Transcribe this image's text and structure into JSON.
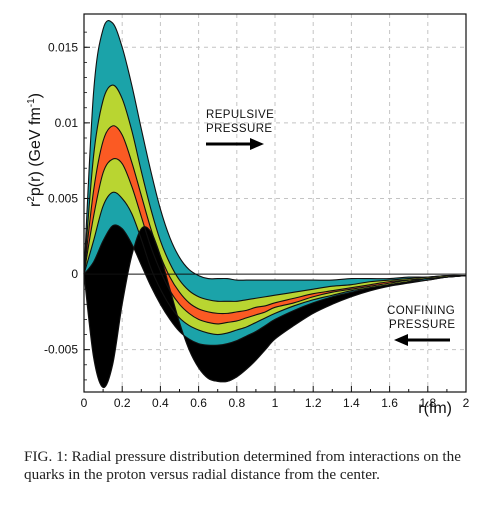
{
  "chart_data": {
    "type": "area",
    "title": "",
    "xlabel": "r(fm)",
    "ylabel_main": "r",
    "ylabel_sup": "2",
    "ylabel_rest": "p(r) (GeV fm",
    "ylabel_exp": "-1",
    "ylabel_close": ")",
    "xlim": [
      0,
      2
    ],
    "ylim": [
      -0.0078,
      0.0172
    ],
    "grid": true,
    "x_ticks": [
      0,
      0.2,
      0.4,
      0.6,
      0.8,
      1,
      1.2,
      1.4,
      1.6,
      1.8,
      2
    ],
    "x_tick_labels": [
      "0",
      "0.2",
      "0.4",
      "0.6",
      "0.8",
      "1",
      "1.2",
      "1.4",
      "1.6",
      "1.8",
      "2"
    ],
    "y_ticks": [
      -0.005,
      0,
      0.005,
      0.01,
      0.015
    ],
    "y_tick_labels": [
      "-0.005",
      "0",
      "0.005",
      "0.01",
      "0.015"
    ],
    "x": [
      0,
      0.05,
      0.1,
      0.15,
      0.2,
      0.25,
      0.3,
      0.35,
      0.4,
      0.45,
      0.5,
      0.55,
      0.6,
      0.65,
      0.7,
      0.75,
      0.8,
      0.85,
      0.9,
      0.95,
      1.0,
      1.1,
      1.2,
      1.3,
      1.4,
      1.5,
      1.6,
      1.7,
      1.8,
      1.9,
      2.0
    ],
    "series": [
      {
        "values": [
          0,
          0.012,
          0.0162,
          0.0166,
          0.015,
          0.0125,
          0.0096,
          0.0068,
          0.0043,
          0.0024,
          0.0011,
          0.0003,
          -0.0001,
          -0.0003,
          -0.0003,
          -0.0003,
          -0.0004,
          -0.0004,
          -0.0004,
          -0.0004,
          -0.0004,
          -0.0004,
          -0.0004,
          -0.0004,
          -0.0003,
          -0.0003,
          -0.0003,
          -0.0002,
          -0.0002,
          -0.0001,
          -0.0001
        ]
      },
      {
        "values": [
          0,
          0.0078,
          0.0115,
          0.0125,
          0.0116,
          0.0095,
          0.0068,
          0.0043,
          0.0022,
          0.0007,
          -0.0004,
          -0.0011,
          -0.0015,
          -0.0017,
          -0.0018,
          -0.0018,
          -0.0018,
          -0.0017,
          -0.0016,
          -0.0015,
          -0.0014,
          -0.0012,
          -0.001,
          -0.0008,
          -0.0007,
          -0.0005,
          -0.0004,
          -0.0003,
          -0.0002,
          -0.0001,
          -0.0001
        ]
      },
      {
        "values": [
          0,
          0.0055,
          0.0088,
          0.0098,
          0.0092,
          0.0074,
          0.0052,
          0.003,
          0.0012,
          -0.0002,
          -0.0012,
          -0.0019,
          -0.0023,
          -0.0025,
          -0.0026,
          -0.0026,
          -0.0025,
          -0.0024,
          -0.0022,
          -0.0021,
          -0.0019,
          -0.0016,
          -0.0013,
          -0.0011,
          -0.0009,
          -0.0007,
          -0.0005,
          -0.0004,
          -0.0003,
          -0.0002,
          -0.0001
        ]
      },
      {
        "values": [
          0,
          0.0038,
          0.0067,
          0.0076,
          0.0073,
          0.0058,
          0.0038,
          0.0018,
          0.0002,
          -0.0011,
          -0.002,
          -0.0026,
          -0.003,
          -0.0032,
          -0.0033,
          -0.0032,
          -0.0031,
          -0.0029,
          -0.0027,
          -0.0025,
          -0.0022,
          -0.0019,
          -0.0015,
          -0.0012,
          -0.001,
          -0.0008,
          -0.0006,
          -0.0004,
          -0.0003,
          -0.0002,
          -0.0001
        ]
      },
      {
        "values": [
          0,
          0.0022,
          0.0045,
          0.0054,
          0.005,
          0.004,
          0.0023,
          0.0004,
          -0.001,
          -0.0021,
          -0.0029,
          -0.0034,
          -0.0037,
          -0.0039,
          -0.004,
          -0.0039,
          -0.0037,
          -0.0035,
          -0.0032,
          -0.0029,
          -0.0026,
          -0.0021,
          -0.0017,
          -0.0014,
          -0.0011,
          -0.0009,
          -0.0007,
          -0.0005,
          -0.0003,
          -0.0002,
          -0.0001
        ]
      },
      {
        "values": [
          0,
          0.0008,
          0.0022,
          0.0032,
          0.003,
          0.002,
          0.0006,
          -0.0008,
          -0.002,
          -0.003,
          -0.0038,
          -0.0043,
          -0.0046,
          -0.0047,
          -0.0047,
          -0.0046,
          -0.0044,
          -0.0041,
          -0.0038,
          -0.0034,
          -0.003,
          -0.0024,
          -0.0019,
          -0.0015,
          -0.0012,
          -0.0009,
          -0.0007,
          -0.0005,
          -0.0004,
          -0.0002,
          -0.0001
        ]
      },
      {
        "values": [
          0,
          -0.0055,
          -0.0075,
          -0.006,
          -0.002,
          0.0012,
          0.003,
          0.0028,
          0.0012,
          -0.001,
          -0.0032,
          -0.005,
          -0.0062,
          -0.0069,
          -0.0071,
          -0.0071,
          -0.0068,
          -0.0063,
          -0.0057,
          -0.005,
          -0.0043,
          -0.0034,
          -0.0026,
          -0.002,
          -0.0015,
          -0.0011,
          -0.0008,
          -0.0006,
          -0.0004,
          -0.0002,
          -0.0001
        ]
      }
    ],
    "band_colors": [
      "#1ba3a9",
      "#b9d531",
      "#fb5a23",
      "#b9d531",
      "#1ba3a9"
    ],
    "central_line_index": 3,
    "annotations": [
      {
        "lines": [
          "REPULSIVE",
          "PRESSURE"
        ],
        "arrow": "right"
      },
      {
        "lines": [
          "CONFINING",
          "PRESSURE"
        ],
        "arrow": "left"
      }
    ]
  },
  "caption": "FIG. 1: Radial pressure distribution determined from interactions on the quarks in the proton versus radial distance from the center."
}
